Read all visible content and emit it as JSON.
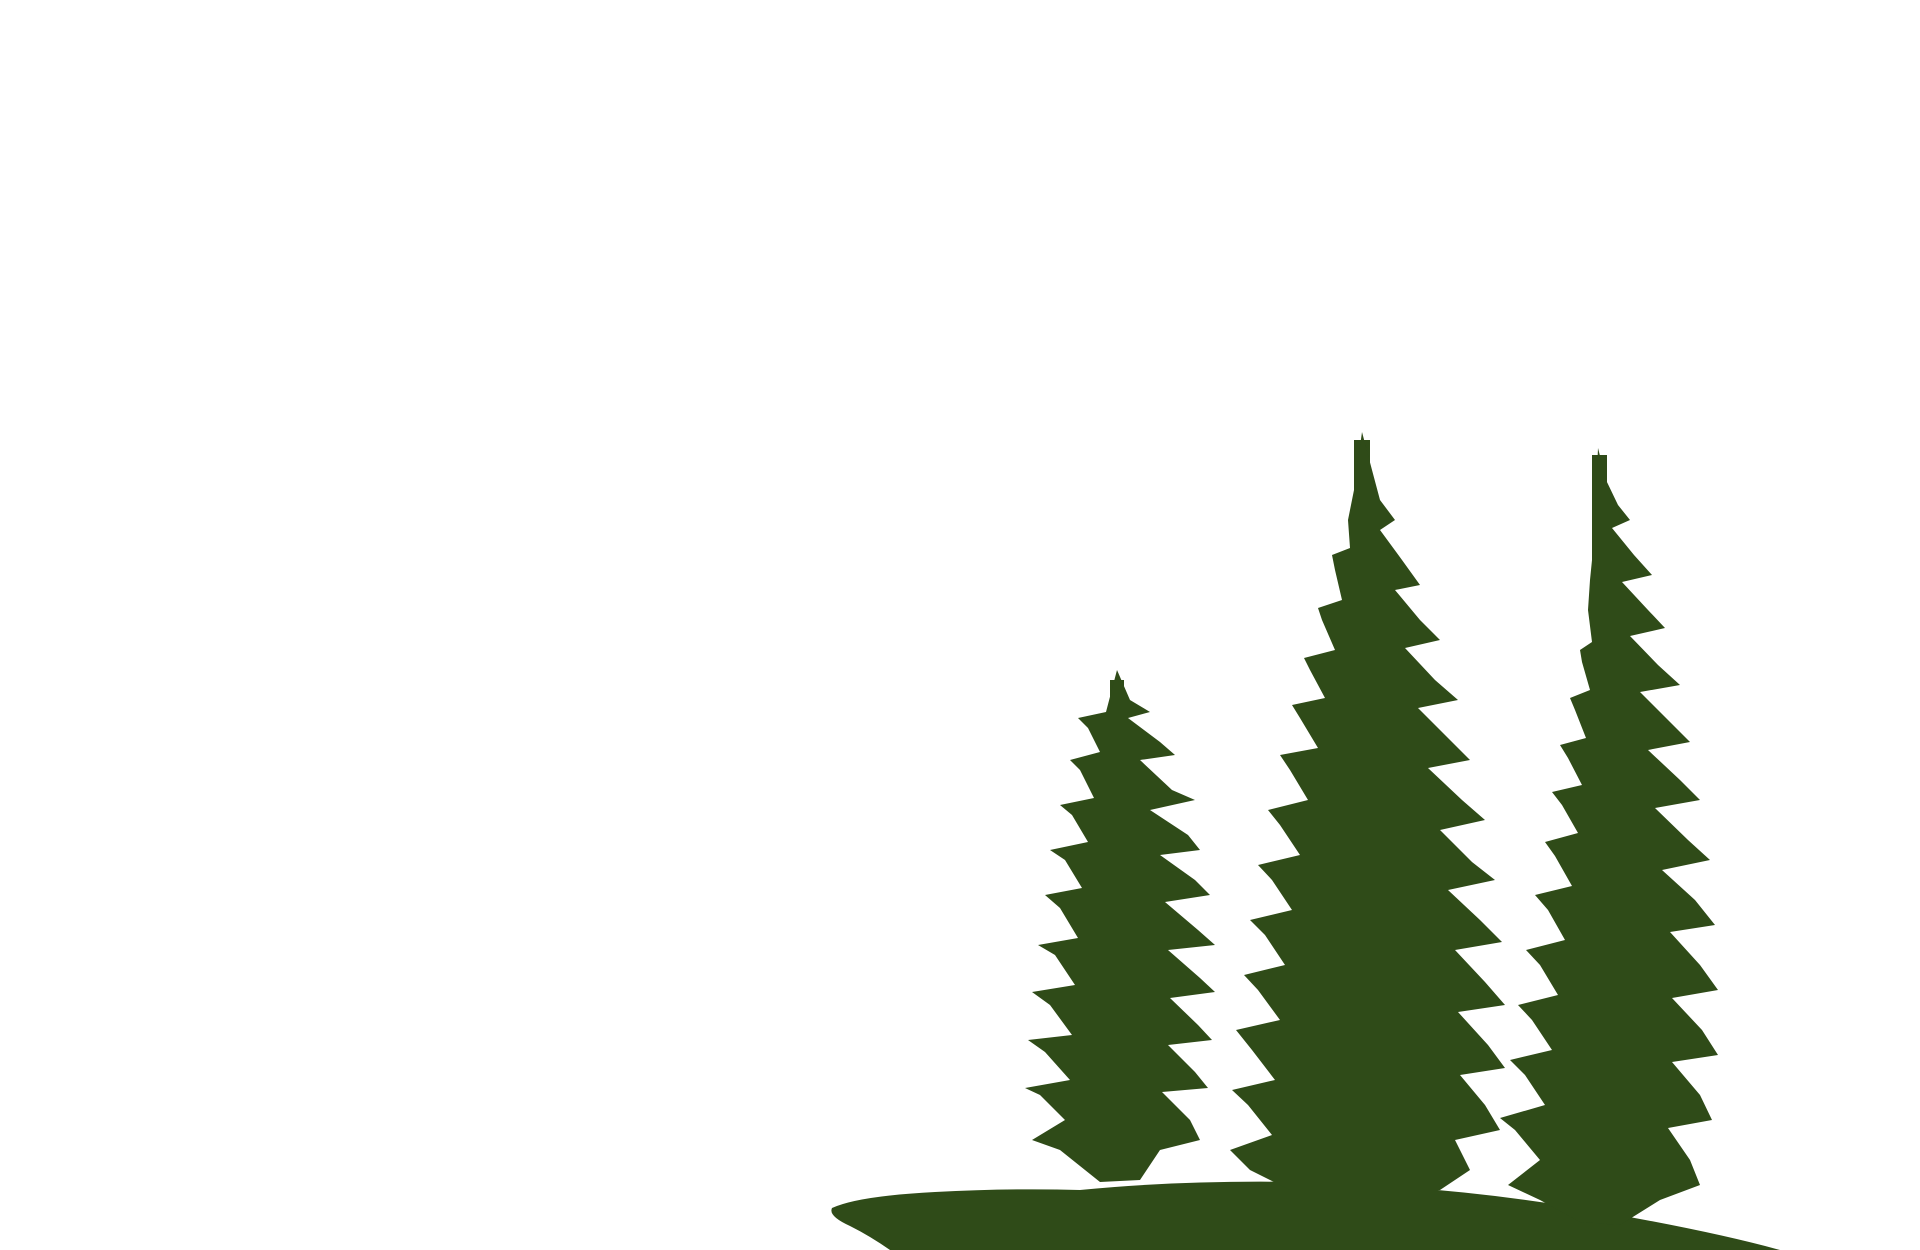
{
  "scene": {
    "background_color": "#ffffff",
    "tree_color": "#2f4b18",
    "objects": [
      {
        "kind": "hill-silhouette"
      },
      {
        "kind": "spruce-tree-small"
      },
      {
        "kind": "spruce-tree-tall"
      },
      {
        "kind": "spruce-tree-right"
      }
    ]
  }
}
